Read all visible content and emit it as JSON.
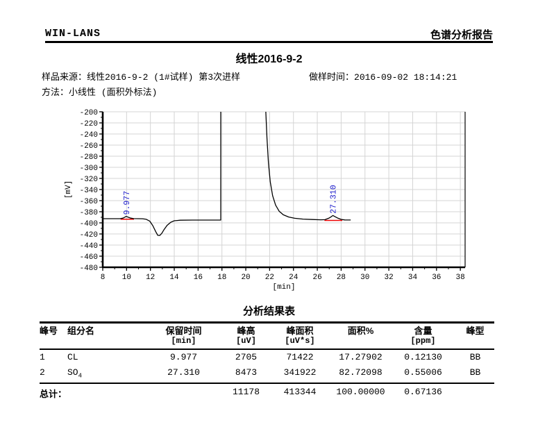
{
  "report": {
    "brand": "WIN-LANS",
    "doc_type": "色谱分析报告",
    "title": "线性2016-9-2",
    "sample_source_label": "样品来源：",
    "sample_source": "线性2016-9-2 (1#试样) 第3次进样",
    "sample_time_label": "做样时间：",
    "sample_time": "2016-09-02 18:14:21",
    "method_label": "方法：",
    "method": "小线性 (面积外标法)"
  },
  "chart_data": {
    "type": "line",
    "title": "",
    "xlabel": "[min]",
    "ylabel": "[mV]",
    "xlim": [
      8,
      38.4
    ],
    "ylim": [
      -480,
      -200
    ],
    "x_ticks": [
      8,
      10,
      12,
      14,
      16,
      18,
      20,
      22,
      24,
      26,
      28,
      30,
      32,
      34,
      36,
      38
    ],
    "y_ticks": [
      -480,
      -460,
      -440,
      -420,
      -400,
      -380,
      -360,
      -340,
      -320,
      -300,
      -280,
      -260,
      -240,
      -220,
      -200
    ],
    "x_minor_ticks": [
      9,
      11,
      13,
      15,
      17,
      19,
      21,
      23,
      25,
      27,
      29,
      31,
      33,
      35,
      37
    ],
    "y_minor_ticks": [
      -470,
      -450,
      -430,
      -410,
      -390,
      -370,
      -350,
      -330,
      -310,
      -290,
      -270,
      -250,
      -230,
      -210
    ],
    "grid": true,
    "grid_color": "#d4d4d4",
    "trace_color": "#000000",
    "baseline_color": "#ee0000",
    "label_color": "#2222cc",
    "segments": [
      [
        [
          8.0,
          -392.5
        ],
        [
          9.45,
          -392.5
        ],
        [
          9.7,
          -391.5
        ],
        [
          9.85,
          -389.8
        ],
        [
          9.977,
          -388.2
        ],
        [
          10.12,
          -389.8
        ],
        [
          10.35,
          -391.5
        ],
        [
          10.6,
          -392.4
        ],
        [
          11.35,
          -392.6
        ],
        [
          11.65,
          -393.6
        ],
        [
          11.95,
          -397
        ],
        [
          12.2,
          -405
        ],
        [
          12.45,
          -416
        ],
        [
          12.62,
          -422.5
        ],
        [
          12.78,
          -422.8
        ],
        [
          12.95,
          -419
        ],
        [
          13.15,
          -412
        ],
        [
          13.4,
          -404.5
        ],
        [
          13.7,
          -399
        ],
        [
          14.0,
          -396.3
        ],
        [
          14.5,
          -395.2
        ],
        [
          15.5,
          -395
        ],
        [
          17.0,
          -395
        ],
        [
          17.9,
          -395
        ],
        [
          17.9,
          -200
        ]
      ],
      [
        [
          21.68,
          -200
        ],
        [
          21.78,
          -248
        ],
        [
          21.9,
          -292
        ],
        [
          22.05,
          -326
        ],
        [
          22.25,
          -351
        ],
        [
          22.5,
          -368
        ],
        [
          22.8,
          -379
        ],
        [
          23.15,
          -385.5
        ],
        [
          23.6,
          -389.5
        ],
        [
          24.1,
          -391.8
        ],
        [
          24.8,
          -393.2
        ],
        [
          25.6,
          -394
        ],
        [
          26.3,
          -394.5
        ],
        [
          26.65,
          -394.2
        ],
        [
          26.95,
          -391.8
        ],
        [
          27.15,
          -389.3
        ],
        [
          27.31,
          -386.8
        ],
        [
          27.5,
          -389
        ],
        [
          27.75,
          -391.8
        ],
        [
          28.0,
          -393.8
        ],
        [
          28.3,
          -394.8
        ],
        [
          28.8,
          -394.9
        ]
      ]
    ],
    "baseline_markers": [
      {
        "x1": 9.5,
        "x2": 10.62,
        "y": -393.4
      },
      {
        "x1": 26.6,
        "x2": 28.1,
        "y": -395.6
      }
    ],
    "peak_labels": [
      {
        "text": "9.977",
        "x": 9.977,
        "y": -385.5
      },
      {
        "text": "27.310",
        "x": 27.31,
        "y": -383.5
      }
    ]
  },
  "results": {
    "title": "分析结果表",
    "headers": [
      {
        "line1": "峰号",
        "line2": ""
      },
      {
        "line1": "组分名",
        "line2": ""
      },
      {
        "line1": "保留时间",
        "line2": "[min]"
      },
      {
        "line1": "峰高",
        "line2": "[uV]"
      },
      {
        "line1": "峰面积",
        "line2": "[uV*s]"
      },
      {
        "line1": "面积%",
        "line2": ""
      },
      {
        "line1": "含量",
        "line2": "[ppm]"
      },
      {
        "line1": "峰型",
        "line2": ""
      }
    ],
    "rows": [
      {
        "no": "1",
        "name": "CL",
        "name_sub": "",
        "rt": "9.977",
        "height": "2705",
        "area": "71422",
        "area_pct": "17.27902",
        "content": "0.12130",
        "type": "BB"
      },
      {
        "no": "2",
        "name": "SO",
        "name_sub": "4",
        "rt": "27.310",
        "height": "8473",
        "area": "341922",
        "area_pct": "82.72098",
        "content": "0.55006",
        "type": "BB"
      }
    ],
    "total": {
      "label": "总计：",
      "height": "11178",
      "area": "413344",
      "area_pct": "100.00000",
      "content": "0.67136"
    }
  }
}
